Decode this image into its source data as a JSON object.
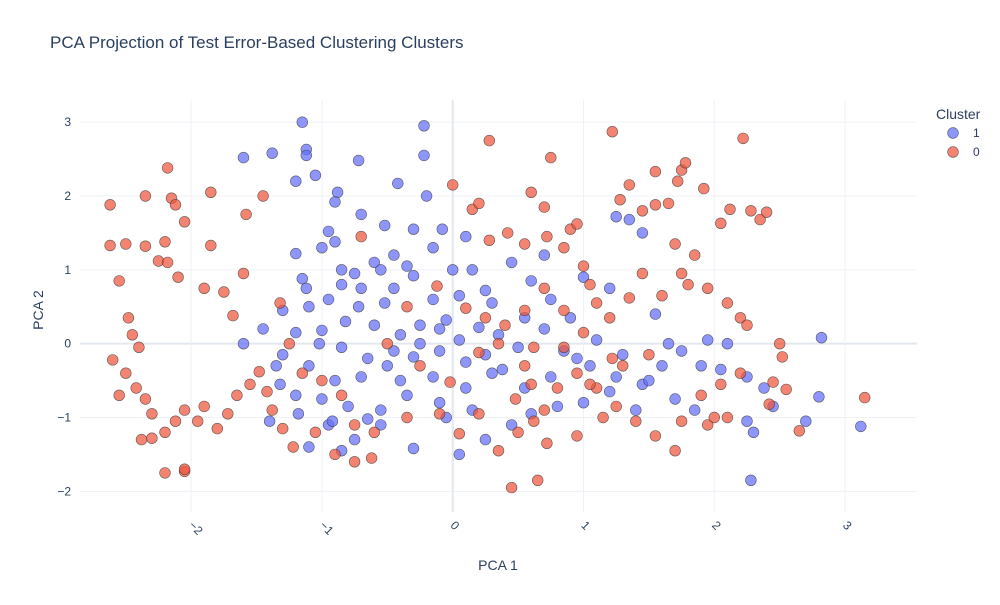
{
  "chart_data": {
    "type": "scatter",
    "title": "PCA Projection of Test Error-Based Clustering Clusters",
    "xlabel": "PCA 1",
    "ylabel": "PCA 2",
    "xlim": [
      -2.85,
      3.55
    ],
    "ylim": [
      -2.28,
      3.3
    ],
    "x_ticks": [
      -2,
      -1,
      0,
      1,
      2,
      3
    ],
    "x_tick_labels": [
      "−2",
      "−1",
      "0",
      "1",
      "2",
      "3"
    ],
    "y_ticks": [
      -2,
      -1,
      0,
      1,
      2,
      3
    ],
    "y_tick_labels": [
      "−2",
      "−1",
      "0",
      "1",
      "2",
      "3"
    ],
    "grid": true,
    "legend": {
      "title": "Cluster",
      "placement": "top-right"
    },
    "series": [
      {
        "name": "1",
        "color": "#636efa",
        "points": [
          [
            -1.15,
            3.0
          ],
          [
            -1.12,
            2.63
          ],
          [
            -1.12,
            2.55
          ],
          [
            -1.6,
            2.52
          ],
          [
            -1.38,
            2.58
          ],
          [
            -1.2,
            2.2
          ],
          [
            -1.05,
            2.28
          ],
          [
            -0.88,
            2.05
          ],
          [
            -0.9,
            1.92
          ],
          [
            -0.95,
            1.52
          ],
          [
            -0.72,
            2.48
          ],
          [
            -0.22,
            2.95
          ],
          [
            -0.22,
            2.55
          ],
          [
            -0.2,
            2.0
          ],
          [
            -0.42,
            2.17
          ],
          [
            -0.52,
            1.6
          ],
          [
            -0.7,
            1.75
          ],
          [
            -0.3,
            1.55
          ],
          [
            -0.08,
            1.55
          ],
          [
            -0.45,
            1.2
          ],
          [
            -0.6,
            1.1
          ],
          [
            -0.75,
            0.95
          ],
          [
            -0.85,
            0.8
          ],
          [
            -1.0,
            1.3
          ],
          [
            -1.2,
            1.22
          ],
          [
            -1.15,
            0.88
          ],
          [
            -1.12,
            0.75
          ],
          [
            -0.95,
            0.6
          ],
          [
            -0.72,
            0.5
          ],
          [
            -0.52,
            0.55
          ],
          [
            -0.3,
            0.92
          ],
          [
            -0.15,
            0.6
          ],
          [
            0.05,
            0.65
          ],
          [
            0.15,
            1.0
          ],
          [
            0.25,
            0.72
          ],
          [
            -0.05,
            0.32
          ],
          [
            -0.25,
            0.25
          ],
          [
            -0.4,
            0.12
          ],
          [
            -0.6,
            0.25
          ],
          [
            -0.82,
            0.3
          ],
          [
            -1.0,
            0.18
          ],
          [
            -1.2,
            0.15
          ],
          [
            -1.3,
            -0.15
          ],
          [
            -1.1,
            -0.3
          ],
          [
            -0.9,
            -0.5
          ],
          [
            -0.7,
            -0.45
          ],
          [
            -0.5,
            -0.3
          ],
          [
            -0.3,
            -0.18
          ],
          [
            -0.1,
            -0.1
          ],
          [
            0.05,
            0.05
          ],
          [
            0.2,
            0.22
          ],
          [
            0.35,
            0.12
          ],
          [
            0.5,
            -0.05
          ],
          [
            0.3,
            -0.4
          ],
          [
            0.1,
            -0.6
          ],
          [
            -0.1,
            -0.8
          ],
          [
            -0.35,
            -0.7
          ],
          [
            -0.55,
            -0.9
          ],
          [
            -0.8,
            -0.85
          ],
          [
            -1.0,
            -0.75
          ],
          [
            -1.2,
            -0.7
          ],
          [
            -0.95,
            -1.1
          ],
          [
            -0.75,
            -1.3
          ],
          [
            -0.55,
            -1.1
          ],
          [
            -0.3,
            -1.42
          ],
          [
            0.05,
            -1.5
          ],
          [
            0.25,
            -1.3
          ],
          [
            0.45,
            -1.1
          ],
          [
            0.6,
            -0.95
          ],
          [
            0.8,
            -0.85
          ],
          [
            1.0,
            -0.8
          ],
          [
            1.2,
            -0.65
          ],
          [
            1.45,
            -0.55
          ],
          [
            1.6,
            -0.3
          ],
          [
            1.75,
            -0.1
          ],
          [
            1.95,
            0.05
          ],
          [
            2.1,
            0.0
          ],
          [
            2.05,
            -0.35
          ],
          [
            2.25,
            -0.45
          ],
          [
            2.45,
            -0.85
          ],
          [
            2.38,
            -0.6
          ],
          [
            2.25,
            -1.05
          ],
          [
            2.3,
            -1.2
          ],
          [
            2.28,
            -1.85
          ],
          [
            2.8,
            -0.72
          ],
          [
            2.82,
            0.08
          ],
          [
            3.12,
            -1.12
          ],
          [
            2.7,
            -1.05
          ],
          [
            1.45,
            1.5
          ],
          [
            1.55,
            0.4
          ],
          [
            1.65,
            0.0
          ],
          [
            1.25,
            -0.45
          ],
          [
            1.05,
            -0.3
          ],
          [
            0.9,
            0.35
          ],
          [
            0.75,
            0.6
          ],
          [
            0.6,
            0.85
          ],
          [
            0.45,
            1.1
          ],
          [
            0.7,
            1.2
          ],
          [
            1.0,
            0.9
          ],
          [
            1.2,
            0.75
          ],
          [
            1.25,
            1.72
          ],
          [
            1.35,
            1.68
          ],
          [
            0.0,
            1.0
          ],
          [
            -0.1,
            0.2
          ],
          [
            -0.25,
            0.0
          ],
          [
            -0.45,
            -0.1
          ],
          [
            -0.65,
            -0.2
          ],
          [
            -0.85,
            -0.05
          ],
          [
            -1.02,
            0.0
          ],
          [
            -0.15,
            -0.45
          ],
          [
            0.1,
            -0.25
          ],
          [
            0.25,
            -0.15
          ],
          [
            0.38,
            -0.35
          ],
          [
            0.55,
            -0.6
          ],
          [
            0.75,
            -0.45
          ],
          [
            0.95,
            -0.2
          ],
          [
            0.15,
            -0.9
          ],
          [
            -0.05,
            -1.0
          ],
          [
            -0.65,
            -1.02
          ],
          [
            -0.92,
            -1.05
          ],
          [
            -1.32,
            -0.55
          ],
          [
            -1.4,
            -1.05
          ],
          [
            -1.18,
            -0.95
          ],
          [
            -1.1,
            -1.4
          ],
          [
            -0.85,
            -1.45
          ],
          [
            -0.45,
            0.75
          ],
          [
            -0.7,
            0.75
          ],
          [
            -0.35,
            1.05
          ],
          [
            -0.55,
            1.0
          ],
          [
            -0.15,
            1.3
          ],
          [
            0.1,
            1.45
          ],
          [
            -0.85,
            1.0
          ],
          [
            -0.9,
            1.38
          ],
          [
            -1.1,
            0.5
          ],
          [
            -1.3,
            0.45
          ],
          [
            -1.45,
            0.2
          ],
          [
            -1.6,
            0.0
          ],
          [
            -1.35,
            -0.3
          ],
          [
            -0.4,
            -0.5
          ],
          [
            0.3,
            0.55
          ],
          [
            0.55,
            0.35
          ],
          [
            0.7,
            0.2
          ],
          [
            0.85,
            -0.1
          ],
          [
            1.1,
            0.05
          ],
          [
            1.3,
            -0.15
          ],
          [
            1.5,
            -0.5
          ],
          [
            1.7,
            -0.75
          ],
          [
            1.85,
            -0.9
          ],
          [
            1.9,
            -0.3
          ],
          [
            1.4,
            -0.9
          ]
        ]
      },
      {
        "name": "0",
        "color": "#ef553b",
        "points": [
          [
            -2.62,
            1.88
          ],
          [
            -2.35,
            2.0
          ],
          [
            -2.18,
            2.38
          ],
          [
            -2.15,
            1.97
          ],
          [
            -2.12,
            1.88
          ],
          [
            -2.05,
            1.65
          ],
          [
            -1.85,
            2.05
          ],
          [
            -1.58,
            1.75
          ],
          [
            -1.45,
            2.0
          ],
          [
            -2.62,
            1.33
          ],
          [
            -2.5,
            1.35
          ],
          [
            -2.35,
            1.32
          ],
          [
            -2.25,
            1.12
          ],
          [
            -2.2,
            1.38
          ],
          [
            -2.18,
            1.1
          ],
          [
            -2.1,
            0.9
          ],
          [
            -2.55,
            0.85
          ],
          [
            -2.48,
            0.35
          ],
          [
            -2.45,
            0.12
          ],
          [
            -2.4,
            -0.05
          ],
          [
            -2.6,
            -0.22
          ],
          [
            -2.5,
            -0.4
          ],
          [
            -2.42,
            -0.6
          ],
          [
            -2.35,
            -0.75
          ],
          [
            -2.55,
            -0.7
          ],
          [
            -2.3,
            -0.95
          ],
          [
            -2.38,
            -1.3
          ],
          [
            -2.3,
            -1.28
          ],
          [
            -2.2,
            -1.2
          ],
          [
            -2.12,
            -1.05
          ],
          [
            -2.05,
            -0.9
          ],
          [
            -1.95,
            -1.05
          ],
          [
            -1.9,
            -0.85
          ],
          [
            -1.8,
            -1.15
          ],
          [
            -1.72,
            -0.95
          ],
          [
            -1.65,
            -0.7
          ],
          [
            -1.55,
            -0.55
          ],
          [
            -1.48,
            -0.38
          ],
          [
            -1.42,
            -0.65
          ],
          [
            -1.38,
            -0.9
          ],
          [
            -1.3,
            -1.15
          ],
          [
            -1.22,
            -1.4
          ],
          [
            -2.2,
            -1.75
          ],
          [
            -2.05,
            -1.73
          ],
          [
            -2.05,
            -1.7
          ],
          [
            -1.85,
            1.33
          ],
          [
            -1.9,
            0.75
          ],
          [
            -1.75,
            0.7
          ],
          [
            -1.68,
            0.38
          ],
          [
            -1.6,
            0.95
          ],
          [
            -1.32,
            0.55
          ],
          [
            -1.25,
            0.0
          ],
          [
            -1.15,
            -0.4
          ],
          [
            -1.0,
            -0.5
          ],
          [
            -0.85,
            -0.7
          ],
          [
            -0.75,
            -1.1
          ],
          [
            -0.6,
            -1.2
          ],
          [
            -0.62,
            -1.55
          ],
          [
            -0.75,
            -1.6
          ],
          [
            -0.9,
            -1.5
          ],
          [
            -1.05,
            -1.2
          ],
          [
            -0.7,
            1.45
          ],
          [
            -0.35,
            0.5
          ],
          [
            -0.25,
            -0.3
          ],
          [
            0.0,
            2.15
          ],
          [
            0.15,
            1.82
          ],
          [
            0.2,
            1.9
          ],
          [
            0.28,
            2.75
          ],
          [
            0.28,
            1.4
          ],
          [
            0.42,
            1.5
          ],
          [
            0.55,
            1.35
          ],
          [
            0.6,
            2.05
          ],
          [
            0.7,
            1.85
          ],
          [
            0.75,
            2.52
          ],
          [
            0.72,
            1.45
          ],
          [
            0.85,
            1.3
          ],
          [
            0.9,
            1.55
          ],
          [
            0.95,
            1.62
          ],
          [
            1.0,
            1.05
          ],
          [
            1.05,
            0.8
          ],
          [
            1.1,
            0.55
          ],
          [
            1.2,
            0.35
          ],
          [
            1.22,
            2.87
          ],
          [
            1.28,
            1.95
          ],
          [
            1.35,
            2.15
          ],
          [
            1.45,
            1.8
          ],
          [
            1.55,
            2.33
          ],
          [
            1.55,
            1.88
          ],
          [
            1.65,
            1.9
          ],
          [
            1.72,
            2.2
          ],
          [
            1.75,
            2.35
          ],
          [
            1.78,
            2.45
          ],
          [
            1.92,
            2.1
          ],
          [
            2.05,
            1.63
          ],
          [
            2.12,
            1.82
          ],
          [
            2.22,
            2.78
          ],
          [
            2.28,
            1.8
          ],
          [
            2.35,
            1.68
          ],
          [
            2.4,
            1.78
          ],
          [
            1.7,
            1.35
          ],
          [
            1.75,
            0.95
          ],
          [
            1.8,
            0.8
          ],
          [
            1.6,
            0.65
          ],
          [
            1.45,
            0.95
          ],
          [
            1.35,
            0.62
          ],
          [
            1.85,
            1.2
          ],
          [
            1.95,
            0.75
          ],
          [
            2.1,
            0.55
          ],
          [
            2.2,
            0.35
          ],
          [
            2.25,
            0.25
          ],
          [
            2.5,
            0.0
          ],
          [
            2.52,
            -0.18
          ],
          [
            2.45,
            -0.52
          ],
          [
            2.55,
            -0.62
          ],
          [
            2.42,
            -0.82
          ],
          [
            2.65,
            -1.18
          ],
          [
            3.15,
            -0.73
          ],
          [
            2.2,
            -0.4
          ],
          [
            2.05,
            -0.55
          ],
          [
            1.9,
            -0.7
          ],
          [
            1.95,
            -1.1
          ],
          [
            2.0,
            -1.0
          ],
          [
            2.1,
            -1.0
          ],
          [
            1.75,
            -1.05
          ],
          [
            1.7,
            -1.45
          ],
          [
            1.55,
            -1.25
          ],
          [
            1.4,
            -1.05
          ],
          [
            1.25,
            -0.85
          ],
          [
            1.1,
            -0.6
          ],
          [
            1.3,
            -0.3
          ],
          [
            1.5,
            -0.15
          ],
          [
            0.95,
            -0.4
          ],
          [
            0.8,
            -0.6
          ],
          [
            0.7,
            -0.9
          ],
          [
            0.62,
            -1.05
          ],
          [
            0.5,
            -1.2
          ],
          [
            0.35,
            -1.45
          ],
          [
            0.45,
            -1.95
          ],
          [
            0.48,
            -0.75
          ],
          [
            0.55,
            -0.3
          ],
          [
            0.62,
            -0.05
          ],
          [
            0.4,
            0.25
          ],
          [
            0.55,
            0.45
          ],
          [
            0.7,
            0.75
          ],
          [
            0.85,
            0.45
          ],
          [
            1.0,
            0.15
          ],
          [
            0.25,
            0.35
          ],
          [
            0.1,
            0.48
          ],
          [
            0.2,
            -0.12
          ],
          [
            -0.02,
            -0.52
          ],
          [
            -0.1,
            -0.95
          ],
          [
            0.05,
            -1.22
          ],
          [
            0.2,
            -0.95
          ],
          [
            0.72,
            -1.35
          ],
          [
            0.95,
            -1.25
          ],
          [
            1.15,
            -1.0
          ],
          [
            0.65,
            -1.85
          ],
          [
            -0.12,
            0.78
          ],
          [
            -0.35,
            -1.0
          ],
          [
            -0.5,
            0.0
          ],
          [
            0.35,
            0.0
          ],
          [
            0.6,
            -0.55
          ],
          [
            0.85,
            -0.05
          ],
          [
            1.05,
            -0.55
          ],
          [
            1.22,
            -0.2
          ]
        ]
      }
    ]
  }
}
